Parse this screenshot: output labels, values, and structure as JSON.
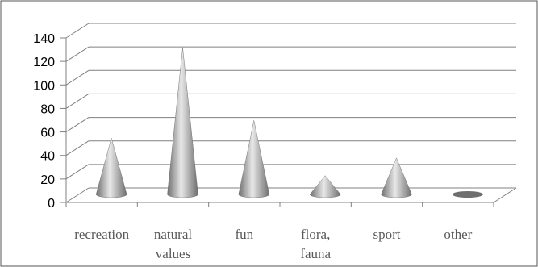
{
  "chart_data": {
    "type": "bar",
    "bar_shape": "cone",
    "three_d": true,
    "categories": [
      {
        "lines": [
          "recreation"
        ]
      },
      {
        "lines": [
          "natural",
          "values"
        ]
      },
      {
        "lines": [
          "fun"
        ]
      },
      {
        "lines": [
          "flora,",
          "fauna"
        ]
      },
      {
        "lines": [
          "sport"
        ]
      },
      {
        "lines": [
          "other"
        ]
      }
    ],
    "values": [
      48,
      125,
      63,
      16,
      31,
      1
    ],
    "ylim": [
      0,
      140
    ],
    "yticks": [
      "0",
      "20",
      "40",
      "60",
      "80",
      "100",
      "120",
      "140"
    ],
    "grid": true,
    "legend": "none",
    "colors": {
      "cone_dark": "#6e6e6e",
      "cone_light": "#e8e8e8",
      "grid": "#808080"
    }
  }
}
